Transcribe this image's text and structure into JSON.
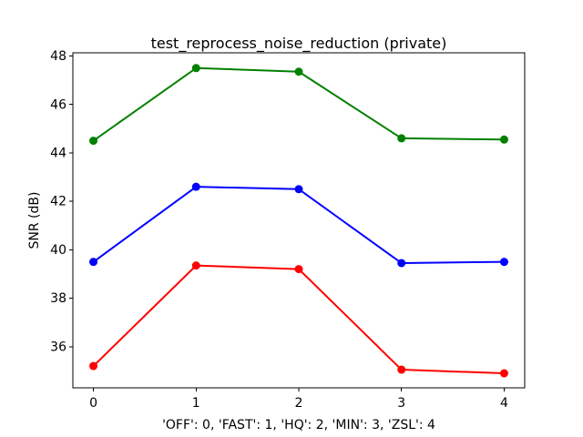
{
  "chart_data": {
    "type": "line",
    "title": "test_reprocess_noise_reduction (private)",
    "xlabel": "'OFF': 0, 'FAST': 1, 'HQ': 2, 'MIN': 3, 'ZSL': 4",
    "ylabel": "SNR (dB)",
    "x": [
      0,
      1,
      2,
      3,
      4
    ],
    "series": [
      {
        "name": "green",
        "color": "#008000",
        "values": [
          44.5,
          47.5,
          47.35,
          44.6,
          44.55
        ]
      },
      {
        "name": "blue",
        "color": "#0000ff",
        "values": [
          39.5,
          42.6,
          42.5,
          39.45,
          39.5
        ]
      },
      {
        "name": "red",
        "color": "#ff0000",
        "values": [
          35.2,
          39.35,
          39.2,
          35.05,
          34.9
        ]
      }
    ],
    "xticks": [
      0,
      1,
      2,
      3,
      4
    ],
    "yticks": [
      36,
      38,
      40,
      42,
      44,
      46,
      48
    ],
    "xlim": [
      -0.2,
      4.2
    ],
    "ylim": [
      34.3,
      48.13
    ],
    "grid": false,
    "legend": "none",
    "marker": "circle",
    "line_width": 2,
    "marker_radius": 4.5,
    "axes_color": "#000000",
    "text_color": "#000000",
    "background_color": "#ffffff",
    "tick_font_size": 14
  }
}
